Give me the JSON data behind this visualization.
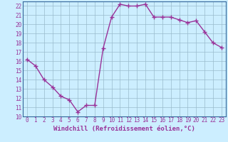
{
  "x": [
    0,
    1,
    2,
    3,
    4,
    5,
    6,
    7,
    8,
    9,
    10,
    11,
    12,
    13,
    14,
    15,
    16,
    17,
    18,
    19,
    20,
    21,
    22,
    23
  ],
  "y": [
    16.2,
    15.5,
    14.0,
    13.2,
    12.2,
    11.8,
    10.5,
    11.2,
    11.2,
    17.4,
    20.8,
    22.2,
    22.0,
    22.0,
    22.2,
    20.8,
    20.8,
    20.8,
    20.5,
    20.2,
    20.4,
    19.2,
    18.0,
    17.5
  ],
  "line_color": "#993399",
  "marker": "+",
  "marker_size": 4,
  "linewidth": 1.0,
  "markeredgewidth": 1.0,
  "xlabel": "Windchill (Refroidissement éolien,°C)",
  "xlim": [
    -0.5,
    23.5
  ],
  "ylim": [
    10,
    22.5
  ],
  "yticks": [
    10,
    11,
    12,
    13,
    14,
    15,
    16,
    17,
    18,
    19,
    20,
    21,
    22
  ],
  "xticks": [
    0,
    1,
    2,
    3,
    4,
    5,
    6,
    7,
    8,
    9,
    10,
    11,
    12,
    13,
    14,
    15,
    16,
    17,
    18,
    19,
    20,
    21,
    22,
    23
  ],
  "bg_color": "#cceeff",
  "grid_color": "#99bbcc",
  "line_border_color": "#336699",
  "tick_color": "#993399",
  "label_color": "#993399",
  "xlabel_fontsize": 6.5,
  "tick_fontsize": 5.5
}
